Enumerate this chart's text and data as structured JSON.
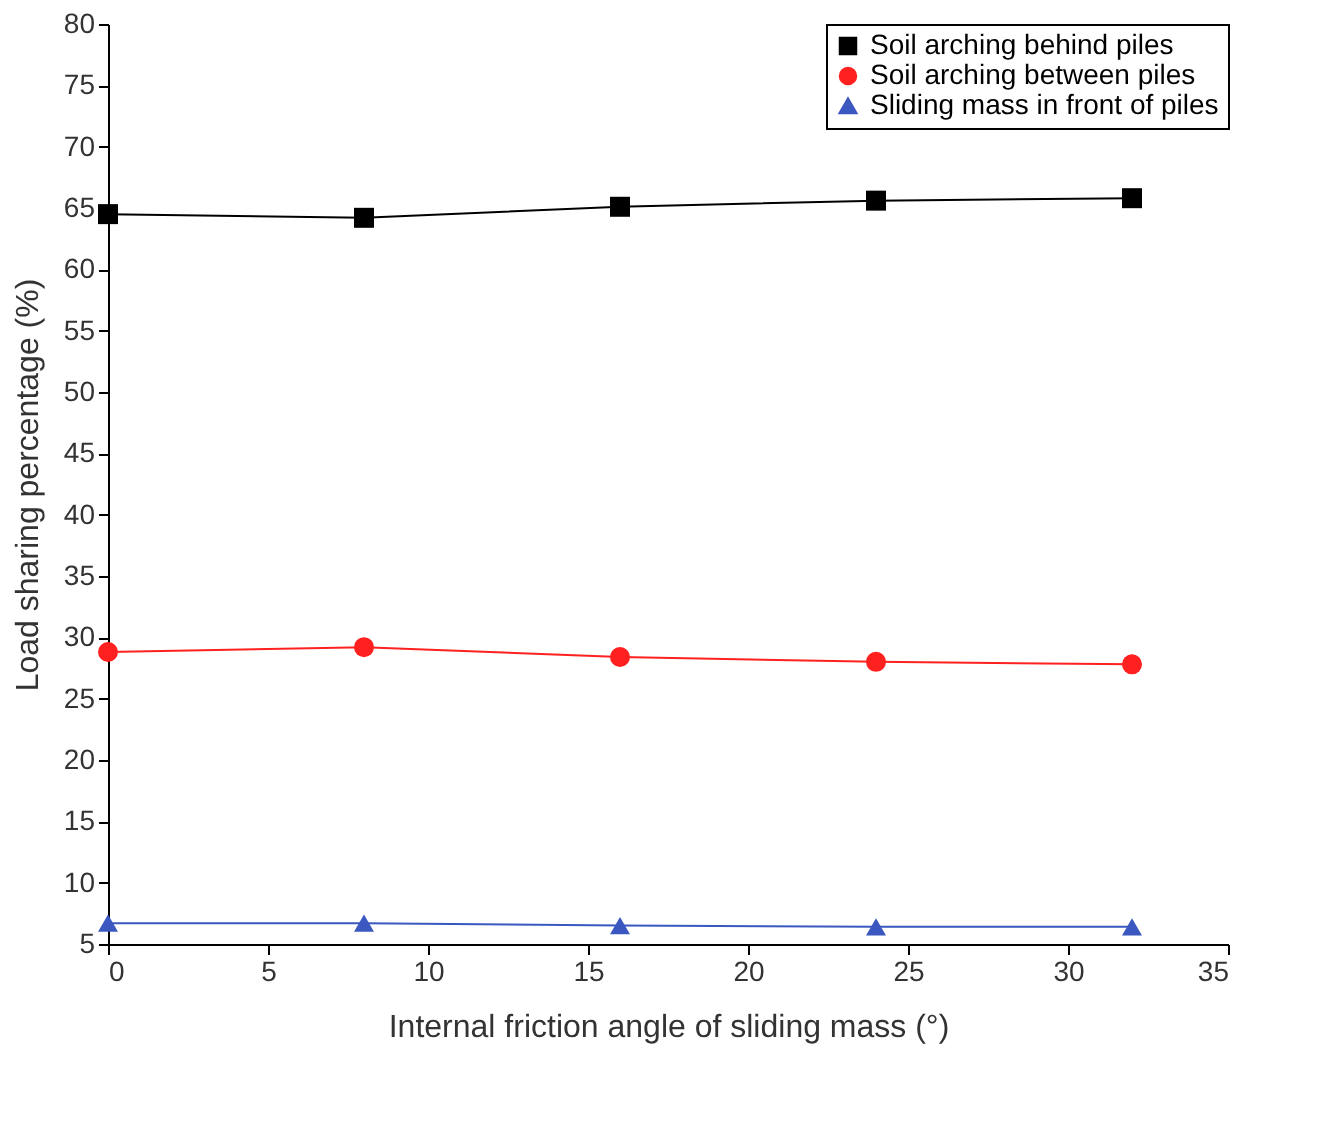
{
  "chart_data": {
    "type": "line",
    "xlabel": "Internal friction angle of sliding mass (°)",
    "ylabel": "Load sharing percentage (%)",
    "x": [
      0,
      8,
      16,
      24,
      32
    ],
    "series": [
      {
        "name": "Soil arching behind piles",
        "color": "#000000",
        "marker": "square",
        "values": [
          64.5,
          64.2,
          65.1,
          65.6,
          65.8
        ]
      },
      {
        "name": "Soil arching between piles",
        "color": "#ff2020",
        "marker": "circle",
        "values": [
          28.8,
          29.2,
          28.4,
          28.0,
          27.8
        ]
      },
      {
        "name": "Sliding mass in front of piles",
        "color": "#3a58c0",
        "marker": "triangle",
        "values": [
          6.7,
          6.7,
          6.5,
          6.4,
          6.4
        ]
      }
    ],
    "xlim": [
      0,
      35
    ],
    "xticks": [
      0,
      5,
      10,
      15,
      20,
      25,
      30,
      35
    ],
    "ylim": [
      5,
      80
    ],
    "yticks": [
      5,
      10,
      15,
      20,
      25,
      30,
      35,
      40,
      45,
      50,
      55,
      60,
      65,
      70,
      75,
      80
    ],
    "grid": false,
    "legend": "top right",
    "line_style": "solid"
  }
}
